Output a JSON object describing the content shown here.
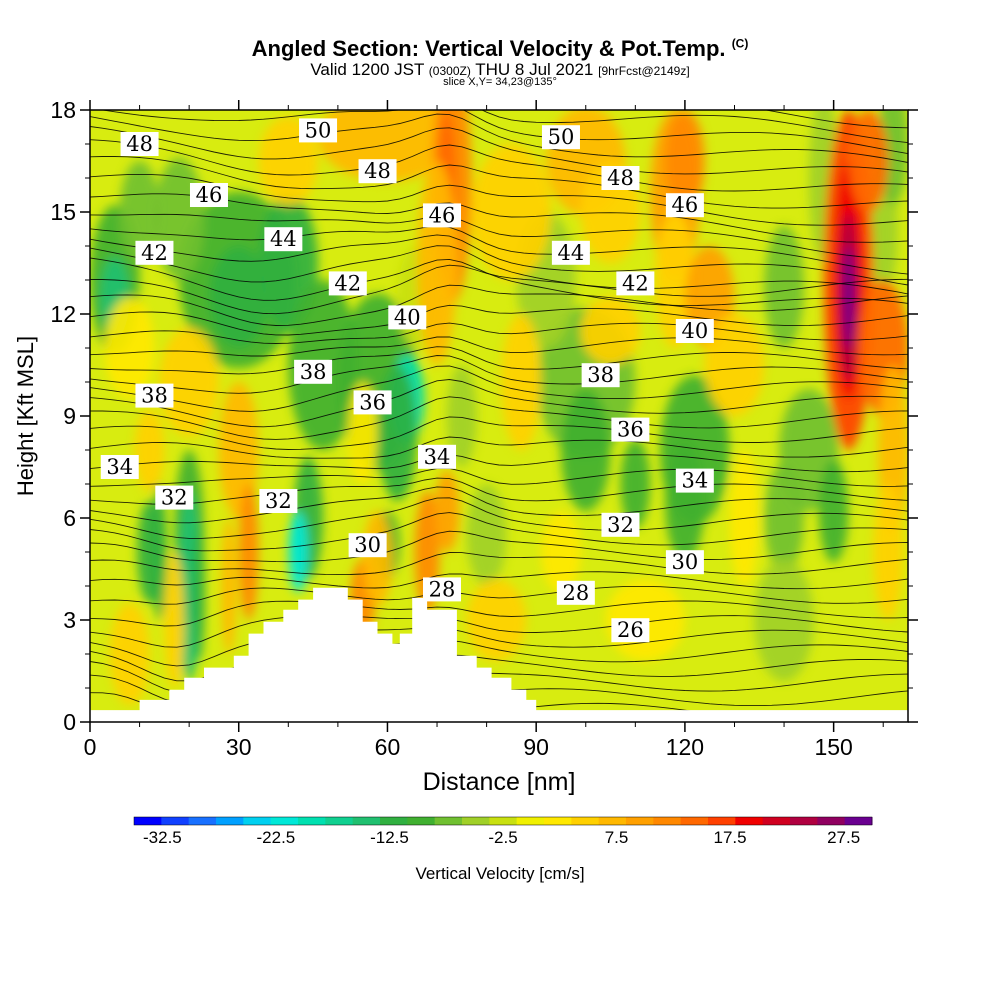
{
  "header": {
    "title": "Angled Section: Vertical Velocity & Pot.Temp.",
    "title_tag": "(C)",
    "valid_prefix": "Valid 1200 JST",
    "valid_utc": "(0300Z)",
    "valid_date": "THU 8 Jul 2021",
    "forecast": "[9hrFcst@2149z]",
    "slice": "slice X,Y= 34,23@135°"
  },
  "chart_data": {
    "type": "heatmap",
    "xlabel": "Distance [nm]",
    "ylabel": "Height [Kft MSL]",
    "xlim": [
      0,
      165
    ],
    "ylim": [
      0,
      18
    ],
    "xticks": [
      0,
      30,
      60,
      90,
      120,
      150
    ],
    "yticks": [
      0,
      3,
      6,
      9,
      12,
      15,
      18
    ],
    "colorbar": {
      "label": "Vertical Velocity [cm/s]",
      "tick_labels": [
        "-32.5",
        "-22.5",
        "-12.5",
        "-2.5",
        "7.5",
        "17.5",
        "27.5"
      ],
      "range": [
        -35,
        30
      ],
      "step": 2.5,
      "colors": [
        "#0000ff",
        "#1040ff",
        "#1870ff",
        "#00a0ff",
        "#00d0f0",
        "#00e8d8",
        "#00e0b0",
        "#10d090",
        "#20c070",
        "#30b040",
        "#40b030",
        "#70c030",
        "#a0d028",
        "#c8e010",
        "#f0f000",
        "#ffe800",
        "#ffd000",
        "#ffb800",
        "#ffa000",
        "#ff8800",
        "#ff6800",
        "#ff4000",
        "#f00000",
        "#d00020",
        "#b00040",
        "#900060",
        "#6a0090"
      ]
    },
    "terrain_profile": [
      [
        0,
        0.35
      ],
      [
        10,
        0.35
      ],
      [
        10,
        0.65
      ],
      [
        16,
        0.65
      ],
      [
        16,
        0.95
      ],
      [
        19,
        0.95
      ],
      [
        19,
        1.3
      ],
      [
        23,
        1.3
      ],
      [
        23,
        1.6
      ],
      [
        29,
        1.6
      ],
      [
        29,
        1.95
      ],
      [
        32,
        1.95
      ],
      [
        32,
        2.6
      ],
      [
        35,
        2.6
      ],
      [
        35,
        2.95
      ],
      [
        39,
        2.95
      ],
      [
        39,
        3.3
      ],
      [
        42,
        3.3
      ],
      [
        42,
        3.6
      ],
      [
        45,
        3.6
      ],
      [
        45,
        3.95
      ],
      [
        52,
        3.95
      ],
      [
        52,
        3.6
      ],
      [
        55,
        3.6
      ],
      [
        55,
        2.95
      ],
      [
        58,
        2.95
      ],
      [
        58,
        2.6
      ],
      [
        61,
        2.6
      ],
      [
        61,
        2.3
      ],
      [
        62.5,
        2.3
      ],
      [
        62.5,
        2.6
      ],
      [
        65,
        2.6
      ],
      [
        65,
        3.65
      ],
      [
        68,
        3.65
      ],
      [
        68,
        3.3
      ],
      [
        74,
        3.3
      ],
      [
        74,
        1.95
      ],
      [
        78,
        1.95
      ],
      [
        78,
        1.6
      ],
      [
        81,
        1.6
      ],
      [
        81,
        1.3
      ],
      [
        85,
        1.3
      ],
      [
        85,
        0.95
      ],
      [
        88,
        0.95
      ],
      [
        88,
        0.65
      ],
      [
        90,
        0.65
      ],
      [
        90,
        0.35
      ],
      [
        165,
        0.35
      ]
    ],
    "theta_labels": [
      {
        "text": "50",
        "x": 46,
        "y": 17.4
      },
      {
        "text": "50",
        "x": 95,
        "y": 17.2
      },
      {
        "text": "48",
        "x": 10,
        "y": 17.0
      },
      {
        "text": "48",
        "x": 58,
        "y": 16.2
      },
      {
        "text": "48",
        "x": 107,
        "y": 16.0
      },
      {
        "text": "46",
        "x": 24,
        "y": 15.5
      },
      {
        "text": "46",
        "x": 71,
        "y": 14.9
      },
      {
        "text": "46",
        "x": 120,
        "y": 15.2
      },
      {
        "text": "44",
        "x": 39,
        "y": 14.2
      },
      {
        "text": "44",
        "x": 97,
        "y": 13.8
      },
      {
        "text": "42",
        "x": 13,
        "y": 13.8
      },
      {
        "text": "42",
        "x": 52,
        "y": 12.9
      },
      {
        "text": "42",
        "x": 110,
        "y": 12.9
      },
      {
        "text": "40",
        "x": 64,
        "y": 11.9
      },
      {
        "text": "40",
        "x": 122,
        "y": 11.5
      },
      {
        "text": "38",
        "x": 13,
        "y": 9.6
      },
      {
        "text": "38",
        "x": 45,
        "y": 10.3
      },
      {
        "text": "38",
        "x": 103,
        "y": 10.2
      },
      {
        "text": "36",
        "x": 57,
        "y": 9.4
      },
      {
        "text": "36",
        "x": 109,
        "y": 8.6
      },
      {
        "text": "34",
        "x": 6,
        "y": 7.5
      },
      {
        "text": "34",
        "x": 70,
        "y": 7.8
      },
      {
        "text": "34",
        "x": 122,
        "y": 7.1
      },
      {
        "text": "32",
        "x": 17,
        "y": 6.6
      },
      {
        "text": "32",
        "x": 38,
        "y": 6.5
      },
      {
        "text": "32",
        "x": 107,
        "y": 5.8
      },
      {
        "text": "30",
        "x": 56,
        "y": 5.2
      },
      {
        "text": "30",
        "x": 120,
        "y": 4.7
      },
      {
        "text": "28",
        "x": 71,
        "y": 3.9
      },
      {
        "text": "28",
        "x": 98,
        "y": 3.8
      },
      {
        "text": "26",
        "x": 109,
        "y": 2.7
      }
    ]
  }
}
